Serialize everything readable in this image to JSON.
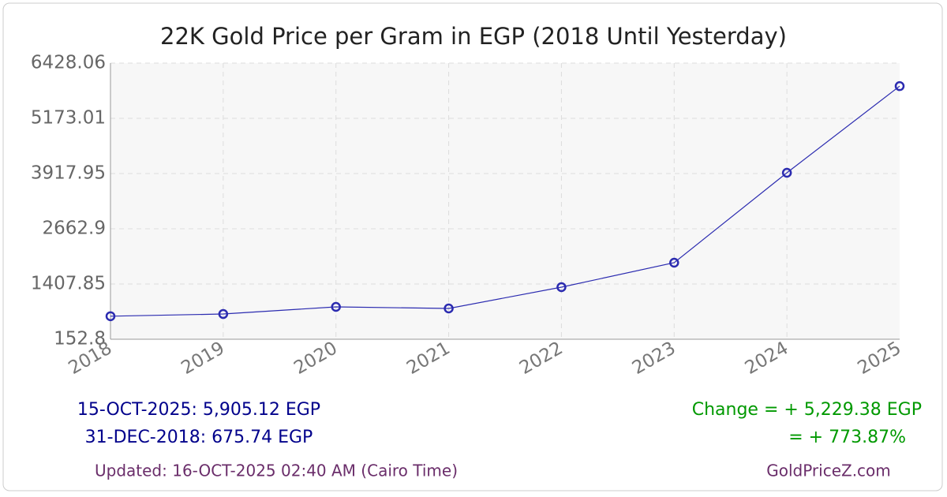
{
  "chart_data": {
    "type": "line",
    "title": "22K Gold Price per Gram in EGP (2018 Until Yesterday)",
    "categories": [
      "2018",
      "2019",
      "2020",
      "2021",
      "2022",
      "2023",
      "2024",
      "2025"
    ],
    "series": [
      {
        "color": "#2b2bb0",
        "values": [
          675.74,
          726,
          888,
          852,
          1336,
          1892,
          3936,
          5905.12
        ]
      }
    ],
    "ylim": [
      152.8,
      6428.06
    ],
    "yticks": [
      152.8,
      1407.85,
      2662.9,
      3917.95,
      5173.01,
      6428.06
    ],
    "grid": true,
    "annotations": {
      "latest": "15-OCT-2025: 5,905.12 EGP",
      "first": "31-DEC-2018: 675.74 EGP",
      "change": "Change = + 5,229.38 EGP",
      "change_pct": "= + 773.87%",
      "updated": "Updated: 16-OCT-2025 02:40 AM (Cairo Time)",
      "source": "GoldPriceZ.com"
    }
  }
}
